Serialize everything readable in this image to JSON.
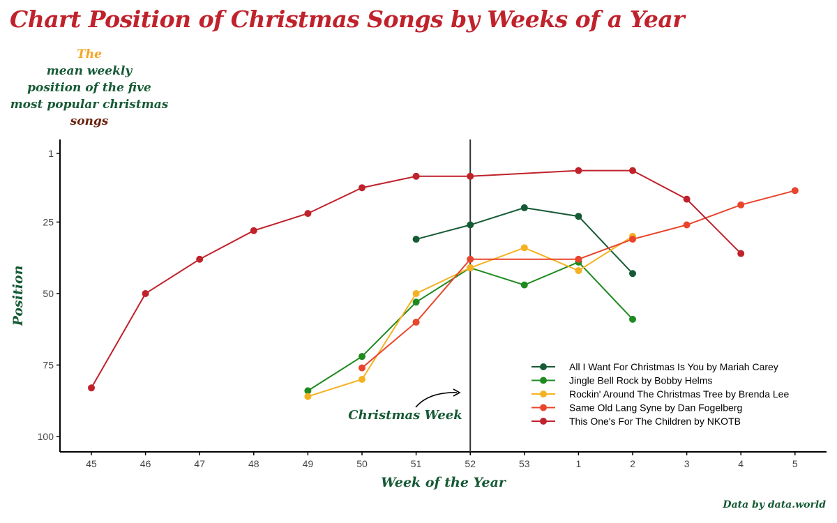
{
  "title": "Chart Position of Christmas Songs by Weeks of a Year",
  "subtitle": {
    "line1": "The",
    "line2": "mean weekly",
    "line3": "position of the five",
    "line4": "most popular christmas",
    "line5": "songs"
  },
  "caption": "Data by data.world",
  "colors": {
    "title": "#c0222c",
    "green_text": "#165a35",
    "gold": "#f5a623",
    "brown": "#6a2311"
  },
  "chart_data": {
    "type": "line",
    "xlabel": "Week of the Year",
    "ylabel": "Position",
    "categories": [
      "45",
      "46",
      "47",
      "48",
      "49",
      "50",
      "51",
      "52",
      "53",
      "1",
      "2",
      "3",
      "4",
      "5"
    ],
    "y_ticks": [
      1,
      25,
      50,
      75,
      100
    ],
    "ylim": [
      105,
      -3
    ],
    "y_reversed": true,
    "grid": false,
    "legend_position": "bottom-right",
    "annotation": {
      "text": "Christmas Week",
      "target_week": "52"
    },
    "vline_at": "52",
    "series": [
      {
        "name": "All I Want For Christmas Is You by Mariah Carey",
        "color": "#165a35",
        "values": [
          null,
          null,
          null,
          null,
          null,
          null,
          31,
          26,
          20,
          23,
          43,
          null,
          null,
          null
        ]
      },
      {
        "name": "Jingle Bell Rock by Bobby Helms",
        "color": "#1f8a1f",
        "values": [
          null,
          null,
          null,
          null,
          84,
          72,
          53,
          41,
          47,
          39,
          59,
          null,
          null,
          null
        ]
      },
      {
        "name": "Rockin' Around The Christmas Tree by Brenda Lee",
        "color": "#f4b223",
        "values": [
          null,
          null,
          null,
          null,
          86,
          80,
          50,
          41,
          34,
          42,
          30,
          null,
          null,
          null
        ]
      },
      {
        "name": "Same Old Lang Syne by Dan Fogelberg",
        "color": "#e8452c",
        "values": [
          null,
          null,
          null,
          null,
          null,
          76,
          60,
          38,
          null,
          38,
          31,
          26,
          19,
          14
        ]
      },
      {
        "name": "This One's For The Children by NKOTB",
        "color": "#c0222c",
        "values": [
          83,
          50,
          38,
          28,
          22,
          13,
          9,
          9,
          null,
          7,
          7,
          17,
          36,
          null
        ]
      }
    ]
  }
}
